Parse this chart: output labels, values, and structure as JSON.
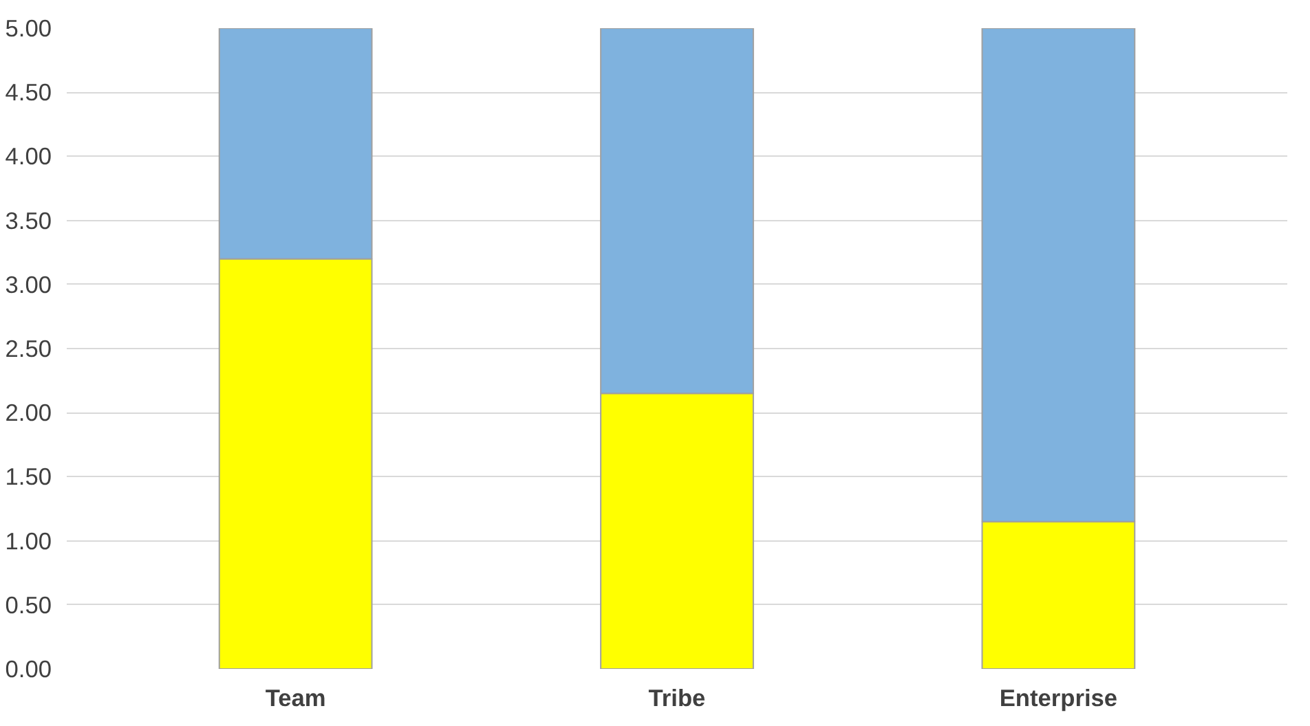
{
  "chart_data": {
    "type": "bar",
    "stacked": true,
    "categories": [
      "Team",
      "Tribe",
      "Enterprise"
    ],
    "series": [
      {
        "color": "#ffff00",
        "values": [
          3.2,
          2.15,
          1.15
        ]
      },
      {
        "color": "#7fb2de",
        "values": [
          1.8,
          2.85,
          3.85
        ]
      }
    ],
    "ylim": [
      0,
      5
    ],
    "yticks": [
      {
        "value": 0,
        "label": "0.00"
      },
      {
        "value": 0.5,
        "label": "0.50"
      },
      {
        "value": 1,
        "label": "1.00"
      },
      {
        "value": 1.5,
        "label": "1.50"
      },
      {
        "value": 2,
        "label": "2.00"
      },
      {
        "value": 2.5,
        "label": "2.50"
      },
      {
        "value": 3,
        "label": "3.00"
      },
      {
        "value": 3.5,
        "label": "3.50"
      },
      {
        "value": 4,
        "label": "4.00"
      },
      {
        "value": 4.5,
        "label": "4.50"
      },
      {
        "value": 5,
        "label": "5.00"
      }
    ],
    "grid": "y"
  }
}
